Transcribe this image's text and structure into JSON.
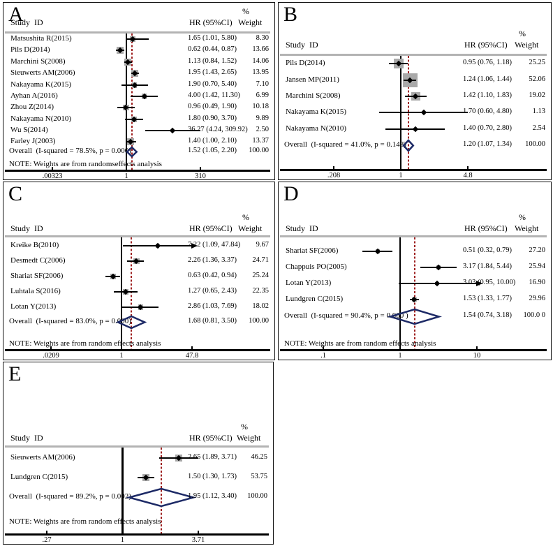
{
  "colors": {
    "background": "#ffffff",
    "panel_border": "#141414",
    "header_rule": "#b3b3b3",
    "ci_line": "#000000",
    "weight_box": "#a9a9a9",
    "diamond_outline": "#1d2a66",
    "overall_dotted_line": "#9e2020",
    "text": "#000000"
  },
  "chart_data": [
    {
      "id": "A",
      "panel_label": "A",
      "type": "forest",
      "columns": {
        "study": "Study  ID",
        "hr": "HR (95%CI)",
        "pct": "%",
        "weight": "Weight"
      },
      "axis": {
        "scale": "log",
        "min": 0.00323,
        "max": 310,
        "ticks": [
          ".00323",
          "1",
          "310"
        ]
      },
      "studies": [
        {
          "label": "Matsushita R(2015)",
          "hr_text": "1.65 (1.01, 5.80)",
          "weight_text": "8.30",
          "weight": 8.3,
          "est": 1.65,
          "lo": 1.01,
          "hi": 5.8
        },
        {
          "label": "Pils D(2014)",
          "hr_text": "0.62 (0.44, 0.87)",
          "weight_text": "13.66",
          "weight": 13.66,
          "est": 0.62,
          "lo": 0.44,
          "hi": 0.87
        },
        {
          "label": "Marchini S(2008)",
          "hr_text": "1.13 (0.84, 1.52)",
          "weight_text": "14.06",
          "weight": 14.06,
          "est": 1.13,
          "lo": 0.84,
          "hi": 1.52
        },
        {
          "label": "Sieuwerts AM(2006)",
          "hr_text": "1.95 (1.43, 2.65)",
          "weight_text": "13.95",
          "weight": 13.95,
          "est": 1.95,
          "lo": 1.43,
          "hi": 2.65
        },
        {
          "label": "Nakayama K(2015)",
          "hr_text": "1.90 (0.70, 5.40)",
          "weight_text": "7.10",
          "weight": 7.1,
          "est": 1.9,
          "lo": 0.7,
          "hi": 5.4
        },
        {
          "label": "Ayhan A(2016)",
          "hr_text": "4.00 (1.42, 11.30)",
          "weight_text": "6.99",
          "weight": 6.99,
          "est": 4.0,
          "lo": 1.42,
          "hi": 11.3
        },
        {
          "label": "Zhou Z(2014)",
          "hr_text": "0.96 (0.49, 1.90)",
          "weight_text": "10.18",
          "weight": 10.18,
          "est": 0.96,
          "lo": 0.49,
          "hi": 1.9
        },
        {
          "label": "Nakayama N(2010)",
          "hr_text": "1.80 (0.90, 3.70)",
          "weight_text": "9.89",
          "weight": 9.89,
          "est": 1.8,
          "lo": 0.9,
          "hi": 3.7
        },
        {
          "label": "Wu S(2014)",
          "hr_text": "36.27 (4.24, 309.92)",
          "weight_text": "2.50",
          "weight": 2.5,
          "est": 36.27,
          "lo": 4.24,
          "hi": 309.92
        },
        {
          "label": "Farley J(2003)",
          "hr_text": "1.40 (1.00, 2.10)",
          "weight_text": "13.37",
          "weight": 13.37,
          "est": 1.4,
          "lo": 1.0,
          "hi": 2.1
        }
      ],
      "overall": {
        "label": "Overall  (I-squared = 78.5%, p = 0.000)",
        "hr_text": "1.52 (1.05, 2.20)",
        "weight_text": "100.00",
        "est": 1.52,
        "lo": 1.05,
        "hi": 2.2
      },
      "note": "NOTE: Weights are from randomseffects analysis"
    },
    {
      "id": "B",
      "panel_label": "B",
      "type": "forest",
      "columns": {
        "study": "Study  ID",
        "hr": "HR (95%CI)",
        "pct": "%",
        "weight": "Weight"
      },
      "axis": {
        "scale": "log",
        "min": 0.208,
        "max": 4.8,
        "ticks": [
          ".208",
          "1",
          "4.8"
        ]
      },
      "studies": [
        {
          "label": "Pils D(2014)",
          "hr_text": "0.95 (0.76, 1.18)",
          "weight_text": "25.25",
          "weight": 25.25,
          "est": 0.95,
          "lo": 0.76,
          "hi": 1.18
        },
        {
          "label": "Jansen MP(2011)",
          "hr_text": "1.24 (1.06, 1.44)",
          "weight_text": "52.06",
          "weight": 52.06,
          "est": 1.24,
          "lo": 1.06,
          "hi": 1.44
        },
        {
          "label": "Marchini S(2008)",
          "hr_text": "1.42 (1.10, 1.83)",
          "weight_text": "19.02",
          "weight": 19.02,
          "est": 1.42,
          "lo": 1.1,
          "hi": 1.83
        },
        {
          "label": "Nakayama K(2015)",
          "hr_text": "1.70 (0.60, 4.80)",
          "weight_text": "1.13",
          "weight": 1.13,
          "est": 1.7,
          "lo": 0.6,
          "hi": 4.8
        },
        {
          "label": "Nakayama N(2010)",
          "hr_text": "1.40 (0.70, 2.80)",
          "weight_text": "2.54",
          "weight": 2.54,
          "est": 1.4,
          "lo": 0.7,
          "hi": 2.8
        }
      ],
      "overall": {
        "label": "Overall  (I-squared = 41.0%, p = 0.148)",
        "hr_text": "1.20 (1.07, 1.34)",
        "weight_text": "100.00",
        "est": 1.2,
        "lo": 1.07,
        "hi": 1.34
      },
      "note": null
    },
    {
      "id": "C",
      "panel_label": "C",
      "type": "forest",
      "columns": {
        "study": "Study  ID",
        "hr": "HR (95%CI)",
        "pct": "%",
        "weight": "Weight"
      },
      "axis": {
        "scale": "log",
        "min": 0.0209,
        "max": 47.8,
        "ticks": [
          ".0209",
          "1",
          "47.8"
        ]
      },
      "studies": [
        {
          "label": "Kreike B(2010)",
          "hr_text": "7.22 (1.09, 47.84)",
          "weight_text": "9.67",
          "weight": 9.67,
          "est": 7.22,
          "lo": 1.09,
          "hi": 47.84,
          "arrow_hi": true
        },
        {
          "label": "Desmedt C(2006)",
          "hr_text": "2.26 (1.36, 3.37)",
          "weight_text": "24.71",
          "weight": 24.71,
          "est": 2.26,
          "lo": 1.36,
          "hi": 3.37
        },
        {
          "label": "Shariat SF(2006)",
          "hr_text": "0.63 (0.42, 0.94)",
          "weight_text": "25.24",
          "weight": 25.24,
          "est": 0.63,
          "lo": 0.42,
          "hi": 0.94
        },
        {
          "label": "Luhtala S(2016)",
          "hr_text": "1.27 (0.65, 2.43)",
          "weight_text": "22.35",
          "weight": 22.35,
          "est": 1.27,
          "lo": 0.65,
          "hi": 2.43
        },
        {
          "label": "Lotan Y(2013)",
          "hr_text": "2.86 (1.03, 7.69)",
          "weight_text": "18.02",
          "weight": 18.02,
          "est": 2.86,
          "lo": 1.03,
          "hi": 7.69
        }
      ],
      "overall": {
        "label": "Overall  (I-squared = 83.0%, p = 0.000)",
        "hr_text": "1.68 (0.81, 3.50)",
        "weight_text": "100.00",
        "est": 1.68,
        "lo": 0.81,
        "hi": 3.5
      },
      "note": "NOTE: Weights are from random effects analysis"
    },
    {
      "id": "D",
      "panel_label": "D",
      "type": "forest",
      "columns": {
        "study": "Study  ID",
        "hr": "HR (95%CI)",
        "pct": "%",
        "weight": "Weight"
      },
      "axis": {
        "scale": "log",
        "min": 0.1,
        "max": 10,
        "ticks": [
          ".1",
          "1",
          "10"
        ]
      },
      "studies": [
        {
          "label": "Shariat SF(2006)",
          "hr_text": "0.51 (0.32, 0.79)",
          "weight_text": "27.20",
          "weight": 27.2,
          "est": 0.51,
          "lo": 0.32,
          "hi": 0.79
        },
        {
          "label": "Chappuis PO(2005)",
          "hr_text": "3.17 (1.84, 5.44)",
          "weight_text": "25.94",
          "weight": 25.94,
          "est": 3.17,
          "lo": 1.84,
          "hi": 5.44
        },
        {
          "label": "Lotan Y(2013)",
          "hr_text": "3.03 (0.95, 10.00)",
          "weight_text": "16.90",
          "weight": 16.9,
          "est": 3.03,
          "lo": 0.95,
          "hi": 10.0,
          "arrow_hi": true
        },
        {
          "label": "Lundgren C(2015)",
          "hr_text": "1.53 (1.33, 1.77)",
          "weight_text": "29.96",
          "weight": 29.96,
          "est": 1.53,
          "lo": 1.33,
          "hi": 1.77
        }
      ],
      "overall": {
        "label": "Overall  (I-squared = 90.4%, p = 0.000 )",
        "hr_text": "1.54 (0.74, 3.18)",
        "weight_text": "100.0 0",
        "est": 1.54,
        "lo": 0.74,
        "hi": 3.18
      },
      "note": "NOTE: Weights are from random effects analysis"
    },
    {
      "id": "E",
      "panel_label": "E",
      "type": "forest",
      "columns": {
        "study": "Study  ID",
        "hr": "HR (95%CI)",
        "pct": "%",
        "weight": "Weight"
      },
      "axis": {
        "scale": "log",
        "min": 0.27,
        "max": 3.71,
        "ticks": [
          ".27",
          "1",
          "3.71"
        ]
      },
      "studies": [
        {
          "label": "Sieuwerts AM(2006)",
          "hr_text": "2.65 (1.89, 3.71)",
          "weight_text": "46.25",
          "weight": 46.25,
          "est": 2.65,
          "lo": 1.89,
          "hi": 3.71
        },
        {
          "label": "Lundgren C(2015)",
          "hr_text": "1.50 (1.30, 1.73)",
          "weight_text": "53.75",
          "weight": 53.75,
          "est": 1.5,
          "lo": 1.3,
          "hi": 1.73
        }
      ],
      "overall": {
        "label": "Overall  (I-squared = 89.2%, p = 0.002)",
        "hr_text": "1.95 (1.12, 3.40)",
        "weight_text": "100.00",
        "est": 1.95,
        "lo": 1.12,
        "hi": 3.4
      },
      "note": "NOTE: Weights are from random effects analysis"
    }
  ]
}
